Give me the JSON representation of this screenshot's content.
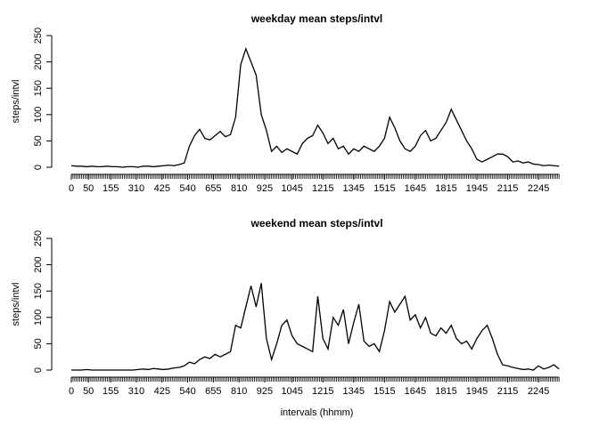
{
  "chart_data": [
    {
      "type": "line",
      "title": "weekday mean steps/intvl",
      "y_label": "steps/intvl",
      "color": "#000000",
      "x": [
        0,
        3,
        6,
        9,
        12,
        15,
        18,
        21,
        24,
        27,
        30,
        33,
        36,
        39,
        42,
        45,
        48,
        51,
        54,
        57,
        60,
        63,
        66,
        69,
        72,
        75,
        78,
        81,
        84,
        87,
        90,
        93,
        96,
        99,
        102,
        105,
        108,
        111,
        114,
        117,
        120,
        123,
        126,
        129,
        132,
        135,
        138,
        141,
        144,
        147,
        150,
        153,
        156,
        159,
        162,
        165,
        168,
        171,
        174,
        177,
        180,
        183,
        186,
        189,
        192,
        195,
        198,
        201,
        204,
        207,
        210,
        213,
        216,
        219,
        222,
        225,
        228,
        231,
        234,
        237,
        240,
        243,
        246,
        249,
        252,
        255,
        258,
        261,
        264,
        267,
        270,
        273,
        276,
        279,
        282,
        285
      ],
      "values": [
        3,
        2,
        2,
        1,
        2,
        1,
        1,
        2,
        1,
        1,
        0,
        1,
        1,
        0,
        2,
        2,
        1,
        2,
        3,
        4,
        3,
        5,
        8,
        40,
        60,
        72,
        55,
        52,
        60,
        68,
        58,
        62,
        95,
        195,
        225,
        200,
        175,
        100,
        70,
        30,
        40,
        28,
        35,
        30,
        25,
        45,
        55,
        60,
        80,
        65,
        45,
        55,
        35,
        40,
        25,
        35,
        30,
        40,
        35,
        30,
        40,
        55,
        95,
        75,
        50,
        35,
        30,
        40,
        60,
        70,
        50,
        55,
        70,
        85,
        110,
        90,
        70,
        50,
        35,
        15,
        10,
        15,
        20,
        25,
        25,
        20,
        10,
        12,
        8,
        10,
        6,
        5,
        3,
        4,
        3,
        2
      ],
      "xlim": [
        -3,
        290
      ],
      "ylim": [
        0,
        250
      ],
      "yticks": [
        0,
        50,
        100,
        150,
        200,
        250
      ],
      "xticks": [
        0,
        {
          "value": 10,
          "label": "50"
        },
        {
          "value": 23,
          "label": "155"
        },
        {
          "value": 38,
          "label": "310"
        },
        {
          "value": 53,
          "label": "425"
        },
        {
          "value": 68,
          "label": "540"
        },
        {
          "value": 83,
          "label": "655"
        },
        {
          "value": 98,
          "label": "810"
        },
        {
          "value": 113,
          "label": "925"
        },
        {
          "value": 129,
          "label": "1045"
        },
        {
          "value": 147,
          "label": "1215"
        },
        {
          "value": 165,
          "label": "1345"
        },
        {
          "value": 183,
          "label": "1515"
        },
        {
          "value": 201,
          "label": "1645"
        },
        {
          "value": 219,
          "label": "1815"
        },
        {
          "value": 237,
          "label": "1945"
        },
        {
          "value": 255,
          "label": "2115"
        },
        {
          "value": 273,
          "label": "2245"
        }
      ]
    },
    {
      "type": "line",
      "title": "weekend mean steps/intvl",
      "y_label": "steps/intvl",
      "x_label": "intervals (hhmm)",
      "color": "#000000",
      "x": [
        0,
        3,
        6,
        9,
        12,
        15,
        18,
        21,
        24,
        27,
        30,
        33,
        36,
        39,
        42,
        45,
        48,
        51,
        54,
        57,
        60,
        63,
        66,
        69,
        72,
        75,
        78,
        81,
        84,
        87,
        90,
        93,
        96,
        99,
        102,
        105,
        108,
        111,
        114,
        117,
        120,
        123,
        126,
        129,
        132,
        135,
        138,
        141,
        144,
        147,
        150,
        153,
        156,
        159,
        162,
        165,
        168,
        171,
        174,
        177,
        180,
        183,
        186,
        189,
        192,
        195,
        198,
        201,
        204,
        207,
        210,
        213,
        216,
        219,
        222,
        225,
        228,
        231,
        234,
        237,
        240,
        243,
        246,
        249,
        252,
        255,
        258,
        261,
        264,
        267,
        270,
        273,
        276,
        279,
        282,
        285
      ],
      "values": [
        0,
        0,
        0,
        1,
        0,
        0,
        0,
        0,
        0,
        0,
        0,
        0,
        0,
        1,
        2,
        1,
        3,
        2,
        1,
        2,
        4,
        5,
        8,
        15,
        12,
        20,
        25,
        22,
        30,
        25,
        30,
        35,
        85,
        80,
        120,
        160,
        120,
        165,
        60,
        20,
        50,
        85,
        95,
        65,
        50,
        45,
        40,
        35,
        140,
        60,
        40,
        100,
        85,
        115,
        50,
        90,
        125,
        55,
        45,
        50,
        35,
        75,
        130,
        110,
        125,
        140,
        95,
        105,
        80,
        100,
        70,
        65,
        80,
        70,
        85,
        60,
        50,
        55,
        40,
        60,
        75,
        85,
        60,
        30,
        10,
        8,
        5,
        3,
        1,
        2,
        0,
        8,
        2,
        5,
        10,
        2
      ],
      "xlim": [
        -3,
        290
      ],
      "ylim": [
        0,
        250
      ],
      "yticks": [
        0,
        50,
        100,
        150,
        200,
        250
      ],
      "xticks": [
        0,
        {
          "value": 10,
          "label": "50"
        },
        {
          "value": 23,
          "label": "155"
        },
        {
          "value": 38,
          "label": "310"
        },
        {
          "value": 53,
          "label": "425"
        },
        {
          "value": 68,
          "label": "540"
        },
        {
          "value": 83,
          "label": "655"
        },
        {
          "value": 98,
          "label": "810"
        },
        {
          "value": 113,
          "label": "925"
        },
        {
          "value": 129,
          "label": "1045"
        },
        {
          "value": 147,
          "label": "1215"
        },
        {
          "value": 165,
          "label": "1345"
        },
        {
          "value": 183,
          "label": "1515"
        },
        {
          "value": 201,
          "label": "1645"
        },
        {
          "value": 219,
          "label": "1815"
        },
        {
          "value": 237,
          "label": "1945"
        },
        {
          "value": 255,
          "label": "2115"
        },
        {
          "value": 273,
          "label": "2245"
        }
      ]
    }
  ]
}
